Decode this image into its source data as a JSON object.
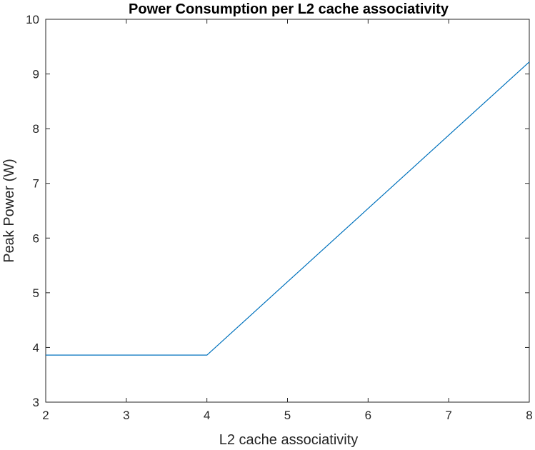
{
  "chart_data": {
    "type": "line",
    "title": "Power Consumption per L2 cache associativity",
    "xlabel": "L2 cache associativity",
    "ylabel": "Peak Power (W)",
    "xlim": [
      2,
      8
    ],
    "ylim": [
      3,
      10
    ],
    "x_ticks": [
      "2",
      "3",
      "4",
      "5",
      "6",
      "7",
      "8"
    ],
    "y_ticks": [
      "3",
      "4",
      "5",
      "6",
      "7",
      "8",
      "9",
      "10"
    ],
    "grid": false,
    "series": [
      {
        "color": "#0072BD",
        "x": [
          2,
          4,
          8
        ],
        "y": [
          3.86,
          3.86,
          9.22
        ]
      }
    ]
  }
}
